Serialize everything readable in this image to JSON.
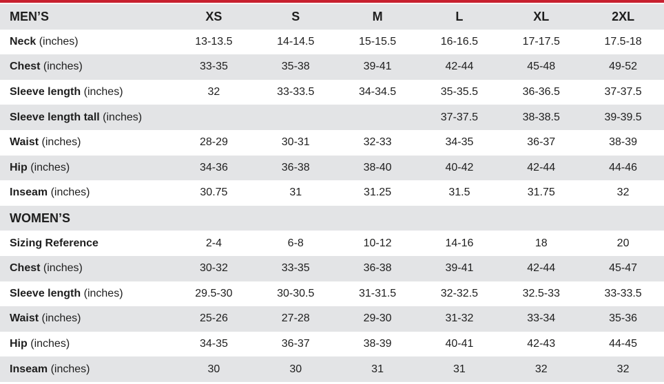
{
  "sections": [
    {
      "title": "MEN’S",
      "headers": [
        "XS",
        "S",
        "M",
        "L",
        "XL",
        "2XL"
      ],
      "rows": [
        {
          "label": "Neck",
          "unit": "(inches)",
          "cells": [
            "13-13.5",
            "14-14.5",
            "15-15.5",
            "16-16.5",
            "17-17.5",
            "17.5-18"
          ]
        },
        {
          "label": "Chest",
          "unit": "(inches)",
          "cells": [
            "33-35",
            "35-38",
            "39-41",
            "42-44",
            "45-48",
            "49-52"
          ]
        },
        {
          "label": "Sleeve length",
          "unit": "(inches)",
          "cells": [
            "32",
            "33-33.5",
            "34-34.5",
            "35-35.5",
            "36-36.5",
            "37-37.5"
          ]
        },
        {
          "label": "Sleeve length tall",
          "unit": "(inches)",
          "cells": [
            null,
            null,
            null,
            "37-37.5",
            "38-38.5",
            "39-39.5"
          ]
        },
        {
          "label": "Waist",
          "unit": "(inches)",
          "cells": [
            "28-29",
            "30-31",
            "32-33",
            "34-35",
            "36-37",
            "38-39"
          ]
        },
        {
          "label": "Hip",
          "unit": "(inches)",
          "cells": [
            "34-36",
            "36-38",
            "38-40",
            "40-42",
            "42-44",
            "44-46"
          ]
        },
        {
          "label": "Inseam",
          "unit": "(inches)",
          "cells": [
            "30.75",
            "31",
            "31.25",
            "31.5",
            "31.75",
            "32"
          ]
        }
      ]
    },
    {
      "title": "WOMEN’S",
      "rows": [
        {
          "label": "Sizing Reference",
          "cells": [
            "2-4",
            "6-8",
            "10-12",
            "14-16",
            "18",
            "20"
          ]
        },
        {
          "label": "Chest",
          "unit": "(inches)",
          "cells": [
            "30-32",
            "33-35",
            "36-38",
            "39-41",
            "42-44",
            "45-47"
          ]
        },
        {
          "label": "Sleeve length",
          "unit": "(inches)",
          "cells": [
            "29.5-30",
            "30-30.5",
            "31-31.5",
            "32-32.5",
            "32.5-33",
            "33-33.5"
          ]
        },
        {
          "label": "Waist",
          "unit": "(inches)",
          "cells": [
            "25-26",
            "27-28",
            "29-30",
            "31-32",
            "33-34",
            "35-36"
          ]
        },
        {
          "label": "Hip",
          "unit": "(inches)",
          "cells": [
            "34-35",
            "36-37",
            "38-39",
            "40-41",
            "42-43",
            "44-45"
          ]
        },
        {
          "label": "Inseam",
          "unit": "(inches)",
          "cells": [
            "30",
            "30",
            "31",
            "31",
            "32",
            "32"
          ]
        }
      ]
    }
  ]
}
